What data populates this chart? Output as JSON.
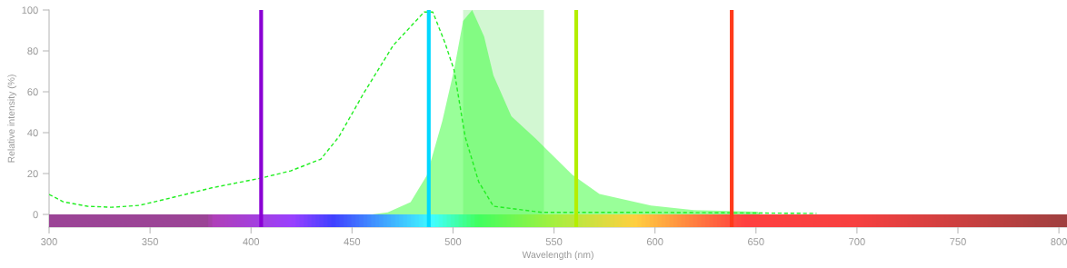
{
  "chart_data": {
    "type": "area",
    "xlabel": "Wavelength (nm)",
    "ylabel": "Relative intensity (%)",
    "xlim": [
      300,
      804
    ],
    "ylim": [
      -6.2,
      100
    ],
    "xticks": [
      300,
      350,
      400,
      450,
      500,
      550,
      600,
      650,
      700,
      750,
      800
    ],
    "yticks": [
      0,
      20,
      40,
      60,
      80,
      100
    ],
    "grid": false,
    "legend": false,
    "series": [
      {
        "type": "line",
        "line_style": "dashed",
        "color": "#22ee22",
        "x": [
          300,
          307,
          319,
          331,
          344.5,
          360,
          380.5,
          405,
          419.6,
          434.5,
          443.5,
          455.6,
          470.4,
          485.7,
          490,
          496,
          500.5,
          506,
          512.7,
          520,
          544,
          600,
          680
        ],
        "values": [
          9.8,
          6.2,
          4,
          3.5,
          4.4,
          8,
          13,
          17.8,
          21.3,
          27,
          38,
          59,
          82.7,
          99,
          99,
          84,
          70.7,
          38,
          16,
          4,
          1,
          1,
          0.5
        ]
      },
      {
        "color": "#33ff33",
        "x": [
          460,
          467.7,
          479,
          487,
          494.7,
          500.5,
          505,
          509.5,
          515.4,
          520,
          528.9,
          541,
          559,
          572.5,
          598,
          618,
          651,
          652
        ],
        "values": [
          0,
          1,
          6,
          19,
          45.7,
          70.7,
          94.7,
          100,
          87,
          68,
          48,
          37,
          19.5,
          10,
          4.4,
          2.2,
          1.3,
          0
        ]
      }
    ],
    "bands": [
      {
        "axis": "x",
        "from": 505,
        "to": 545,
        "color": "#a6f0a6"
      }
    ],
    "ref_lines": [
      {
        "axis": "x",
        "value": 405,
        "color": "#8a00d4"
      },
      {
        "axis": "x",
        "value": 488,
        "color": "#00d8ff"
      },
      {
        "axis": "x",
        "value": 561,
        "color": "#b4ee00"
      },
      {
        "axis": "x",
        "value": 638,
        "color": "#ff3a1a"
      }
    ]
  }
}
